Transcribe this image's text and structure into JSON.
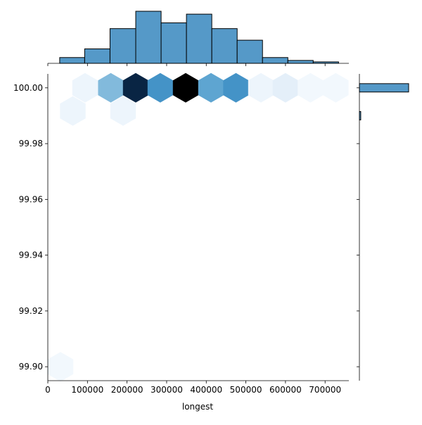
{
  "chart_data": {
    "type": "heatmap",
    "subtype": "hexbin jointplot with marginal histograms",
    "xlabel": "longest",
    "ylabel": "",
    "xlim": [
      0,
      760000
    ],
    "ylim": [
      99.895,
      100.005
    ],
    "x_ticks": [
      0,
      100000,
      200000,
      300000,
      400000,
      500000,
      600000,
      700000
    ],
    "x_tick_labels": [
      "0",
      "100000",
      "200000",
      "300000",
      "400000",
      "500000",
      "600000",
      "700000"
    ],
    "y_ticks": [
      99.9,
      99.92,
      99.94,
      99.96,
      99.98,
      100.0
    ],
    "y_tick_labels": [
      "99.90",
      "99.92",
      "99.94",
      "99.96",
      "99.98",
      "100.00"
    ],
    "grid": false,
    "colormap": "Blues",
    "hexbins": [
      {
        "x": 94000,
        "y": 100.0,
        "count": 1
      },
      {
        "x": 159000,
        "y": 100.0,
        "count": 6
      },
      {
        "x": 222000,
        "y": 100.0,
        "count": 12
      },
      {
        "x": 284000,
        "y": 100.0,
        "count": 8
      },
      {
        "x": 348000,
        "y": 100.0,
        "count": 13
      },
      {
        "x": 412000,
        "y": 100.0,
        "count": 7
      },
      {
        "x": 475000,
        "y": 100.0,
        "count": 8
      },
      {
        "x": 538000,
        "y": 100.0,
        "count": 1
      },
      {
        "x": 600000,
        "y": 100.0,
        "count": 2
      },
      {
        "x": 663000,
        "y": 100.0,
        "count": 0.5
      },
      {
        "x": 727000,
        "y": 100.0,
        "count": 0.5
      },
      {
        "x": 63000,
        "y": 99.9917,
        "count": 1
      },
      {
        "x": 190000,
        "y": 99.9917,
        "count": 1
      },
      {
        "x": 32000,
        "y": 99.9,
        "count": 0.5
      }
    ],
    "max_count": 13,
    "x_histogram": {
      "bin_edges": [
        30000,
        93000,
        157000,
        222000,
        286000,
        350000,
        414000,
        478000,
        542000,
        606000,
        670000,
        734000
      ],
      "counts": [
        2,
        5,
        12,
        18,
        14,
        17,
        12,
        8,
        2,
        1,
        0.5
      ]
    },
    "y_histogram": {
      "bins": [
        {
          "y_low": 99.9985,
          "y_high": 100.0015,
          "count": 110
        },
        {
          "y_low": 99.9885,
          "y_high": 99.9915,
          "count": 3
        }
      ],
      "max_count": 110
    },
    "bar_color": "#5599c8",
    "edge_color": "#000000"
  }
}
